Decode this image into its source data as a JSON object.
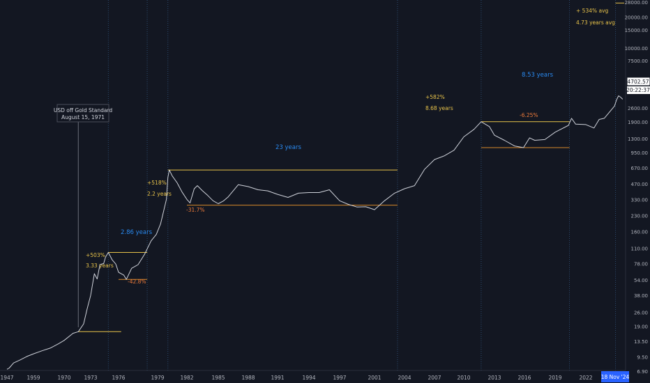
{
  "chart_data": {
    "type": "line",
    "title": "",
    "xlabel": "",
    "ylabel": "",
    "y_scale": "log",
    "grid": false,
    "legend": "none",
    "colors": {
      "background": "#131722",
      "price_line": "#d1d4dc",
      "yellow_line": "#e8c34a",
      "orange_line": "#d98a2a",
      "blue_text": "#2a8bf2",
      "yellow_text": "#e8c34a",
      "orange_text": "#f07c3a",
      "axis_text": "#b2b5be",
      "cycle_vline": "#2b4a6e"
    },
    "x_ticks": [
      "1947",
      "1959",
      "1970",
      "1973",
      "1976",
      "1979",
      "1982",
      "1985",
      "1988",
      "1991",
      "1994",
      "1997",
      "2001",
      "2004",
      "2007",
      "2010",
      "2013",
      "2016",
      "2019",
      "2022"
    ],
    "y_ticks": [
      "28000.00",
      "20000.00",
      "15000.00",
      "10000.00",
      "7500.00",
      "2600.00",
      "1900.00",
      "1300.00",
      "950.00",
      "670.00",
      "470.00",
      "330.00",
      "230.00",
      "160.00",
      "110.00",
      "78.00",
      "54.00",
      "38.00",
      "26.00",
      "19.00",
      "13.50",
      "9.50",
      "6.90"
    ],
    "price_label": "4702.57",
    "time_label": "20:22:37",
    "date_label": "18 Nov '24",
    "series": [
      {
        "values": [
          [
            1947,
            7.2
          ],
          [
            1948,
            7.4
          ],
          [
            1950,
            8.3
          ],
          [
            1953,
            8.9
          ],
          [
            1956,
            9.6
          ],
          [
            1959,
            10.2
          ],
          [
            1962,
            10.9
          ],
          [
            1965,
            11.6
          ],
          [
            1968,
            12.8
          ],
          [
            1970,
            13.8
          ],
          [
            1971,
            16.2
          ],
          [
            1971.6,
            16.8
          ],
          [
            1972.2,
            20
          ],
          [
            1972.6,
            28
          ],
          [
            1973,
            38
          ],
          [
            1973.4,
            62
          ],
          [
            1973.7,
            55
          ],
          [
            1974,
            76
          ],
          [
            1974.4,
            78
          ],
          [
            1974.6,
            90
          ],
          [
            1974.9,
            100
          ],
          [
            1975.3,
            85
          ],
          [
            1975.7,
            77
          ],
          [
            1976,
            64
          ],
          [
            1976.4,
            60
          ],
          [
            1976.6,
            54.5
          ],
          [
            1977,
            70
          ],
          [
            1977.5,
            76
          ],
          [
            1978,
            96
          ],
          [
            1978.5,
            130
          ],
          [
            1978.9,
            150
          ],
          [
            1979.3,
            190
          ],
          [
            1979.6,
            250
          ],
          [
            1979.9,
            330
          ],
          [
            1980.05,
            540
          ],
          [
            1980.2,
            640
          ],
          [
            1980.5,
            560
          ],
          [
            1981,
            480
          ],
          [
            1981.5,
            390
          ],
          [
            1982,
            330
          ],
          [
            1982.3,
            305
          ],
          [
            1982.7,
            420
          ],
          [
            1983,
            450
          ],
          [
            1983.5,
            400
          ],
          [
            1984,
            360
          ],
          [
            1984.5,
            320
          ],
          [
            1985,
            300
          ],
          [
            1985.5,
            318
          ],
          [
            1986,
            350
          ],
          [
            1987,
            460
          ],
          [
            1988,
            440
          ],
          [
            1989,
            410
          ],
          [
            1990,
            400
          ],
          [
            1991,
            370
          ],
          [
            1992,
            345
          ],
          [
            1993,
            380
          ],
          [
            1994,
            385
          ],
          [
            1995,
            385
          ],
          [
            1996,
            410
          ],
          [
            1997,
            320
          ],
          [
            1998,
            295
          ],
          [
            1999,
            278
          ],
          [
            2000,
            280
          ],
          [
            2001,
            262
          ],
          [
            2002,
            320
          ],
          [
            2003,
            380
          ],
          [
            2004,
            420
          ],
          [
            2005,
            450
          ],
          [
            2006,
            650
          ],
          [
            2007,
            810
          ],
          [
            2008,
            880
          ],
          [
            2009,
            1000
          ],
          [
            2010,
            1350
          ],
          [
            2011,
            1600
          ],
          [
            2011.7,
            1900
          ],
          [
            2012.5,
            1700
          ],
          [
            2013,
            1400
          ],
          [
            2014,
            1250
          ],
          [
            2015,
            1100
          ],
          [
            2015.9,
            1060
          ],
          [
            2016.5,
            1320
          ],
          [
            2017,
            1250
          ],
          [
            2018,
            1270
          ],
          [
            2019,
            1500
          ],
          [
            2020.3,
            1750
          ],
          [
            2020.6,
            2050
          ],
          [
            2021,
            1800
          ],
          [
            2022,
            1780
          ],
          [
            2022.8,
            1650
          ],
          [
            2023.3,
            2000
          ],
          [
            2023.8,
            2050
          ],
          [
            2024.3,
            2350
          ],
          [
            2024.8,
            2700
          ],
          [
            2025.0,
            3100
          ],
          [
            2025.2,
            3400
          ],
          [
            2025.4,
            3300
          ],
          [
            2025.6,
            3150
          ]
        ]
      }
    ],
    "annotations": {
      "usd_box_line1": "USD off Gold Standard",
      "usd_box_line2": "August 15, 1971",
      "gain_1": "+503%",
      "years_1": "3.33 years",
      "dur_1": "2.86 years",
      "drop_1": "-42.8%",
      "gain_2": "+518%",
      "years_2": "2.2 years",
      "drop_2": "-31.7%",
      "dur_2": "23 years",
      "gain_3": "+582%",
      "years_3": "8.68 years",
      "dur_3": "8.53 years",
      "drop_3": "-6.25%",
      "avg_gain": "+ 534% avg",
      "avg_years": "4.73 years avg"
    }
  }
}
